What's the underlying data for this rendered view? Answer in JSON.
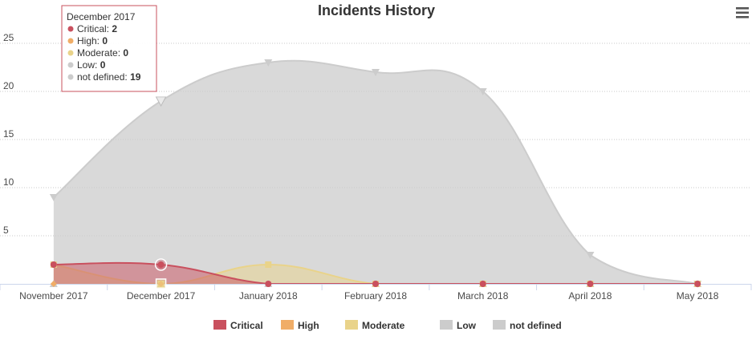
{
  "chart_data": {
    "type": "area",
    "title": "Incidents History",
    "categories": [
      "November 2017",
      "December 2017",
      "January 2018",
      "February 2018",
      "March 2018",
      "April 2018",
      "May 2018"
    ],
    "y_ticks": [
      5,
      10,
      15,
      20,
      25
    ],
    "ylim": [
      0,
      27
    ],
    "grid": true,
    "legend_position": "bottom",
    "series": [
      {
        "name": "Critical",
        "color": "#c9505e",
        "values": [
          2,
          2,
          0,
          0,
          0,
          0,
          0
        ]
      },
      {
        "name": "High",
        "color": "#f0ad67",
        "values": [
          0,
          0,
          0,
          0,
          0,
          0,
          0
        ]
      },
      {
        "name": "Moderate",
        "color": "#e9d38a",
        "values": [
          2,
          0,
          2,
          0,
          0,
          0,
          0
        ]
      },
      {
        "name": "Low",
        "color": "#cccccc",
        "values": [
          0,
          0,
          0,
          0,
          0,
          0,
          0
        ]
      },
      {
        "name": "not defined",
        "color": "#cccccc",
        "values": [
          9,
          19,
          23,
          22,
          20,
          3,
          0
        ]
      }
    ],
    "tooltip": {
      "header": "December 2017",
      "rows": [
        {
          "name": "Critical",
          "value": "2",
          "color": "#c9505e"
        },
        {
          "name": "High",
          "value": "0",
          "color": "#f0ad67"
        },
        {
          "name": "Moderate",
          "value": "0",
          "color": "#e9d38a"
        },
        {
          "name": "Low",
          "value": "0",
          "color": "#cccccc"
        },
        {
          "name": "not defined",
          "value": "19",
          "color": "#cccccc"
        }
      ]
    }
  },
  "menu": {
    "icon": "hamburger-menu-icon"
  }
}
